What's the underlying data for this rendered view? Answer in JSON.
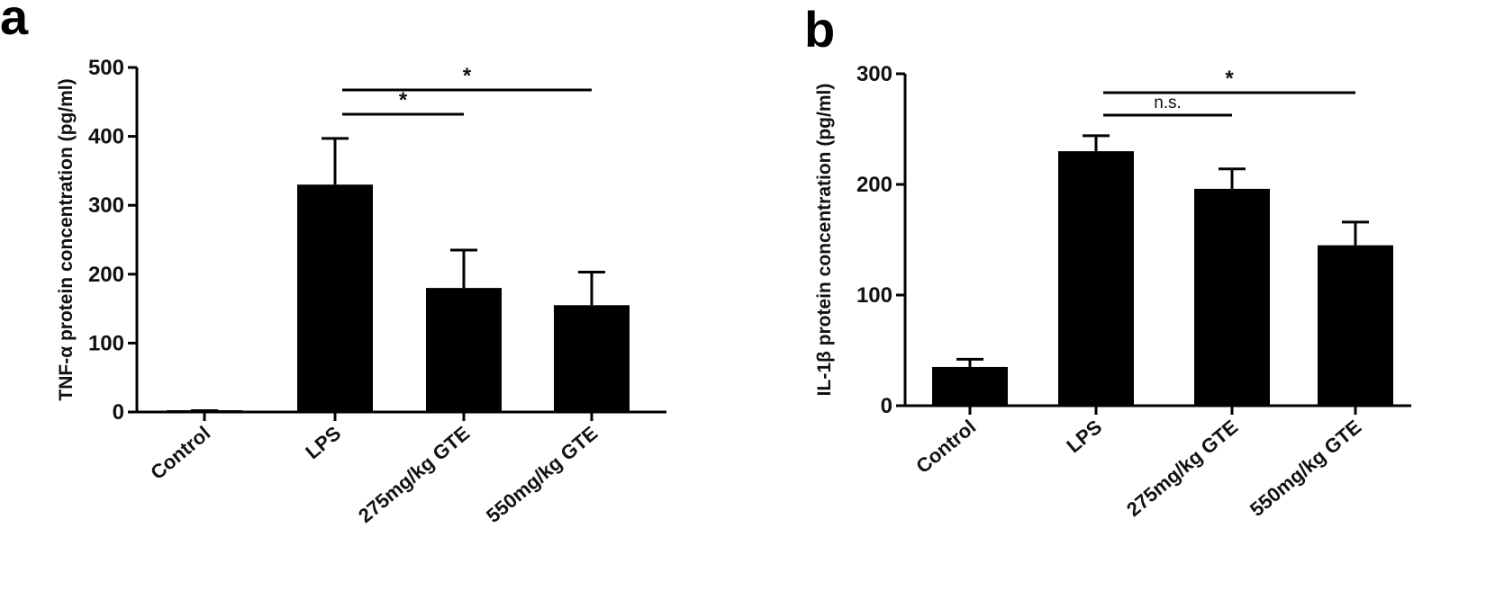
{
  "panels": [
    {
      "label": "a"
    },
    {
      "label": "b"
    }
  ],
  "chart_data": [
    {
      "type": "bar",
      "categories": [
        "Control",
        "LPS",
        "275mg/kg GTE",
        "550mg/kg GTE"
      ],
      "values": [
        2,
        330,
        180,
        155
      ],
      "error_upper": [
        2,
        397,
        235,
        203
      ],
      "ylabel": "TNF-α protein concentration (pg/ml)",
      "ylim": [
        0,
        500
      ],
      "yticks": [
        0,
        100,
        200,
        300,
        400,
        500
      ],
      "color": "#000000",
      "significance": [
        {
          "from": 1,
          "to": 2,
          "label": "*"
        },
        {
          "from": 1,
          "to": 3,
          "label": "*"
        }
      ]
    },
    {
      "type": "bar",
      "categories": [
        "Control",
        "LPS",
        "275mg/kg GTE",
        "550mg/kg GTE"
      ],
      "values": [
        35,
        230,
        196,
        145
      ],
      "error_upper": [
        42,
        244,
        214,
        166
      ],
      "ylabel": "IL-1β protein concentration (pg/ml)",
      "ylim": [
        0,
        300
      ],
      "yticks": [
        0,
        100,
        200,
        300
      ],
      "color": "#000000",
      "significance": [
        {
          "from": 1,
          "to": 2,
          "label": "n.s."
        },
        {
          "from": 1,
          "to": 3,
          "label": "*"
        }
      ]
    }
  ]
}
